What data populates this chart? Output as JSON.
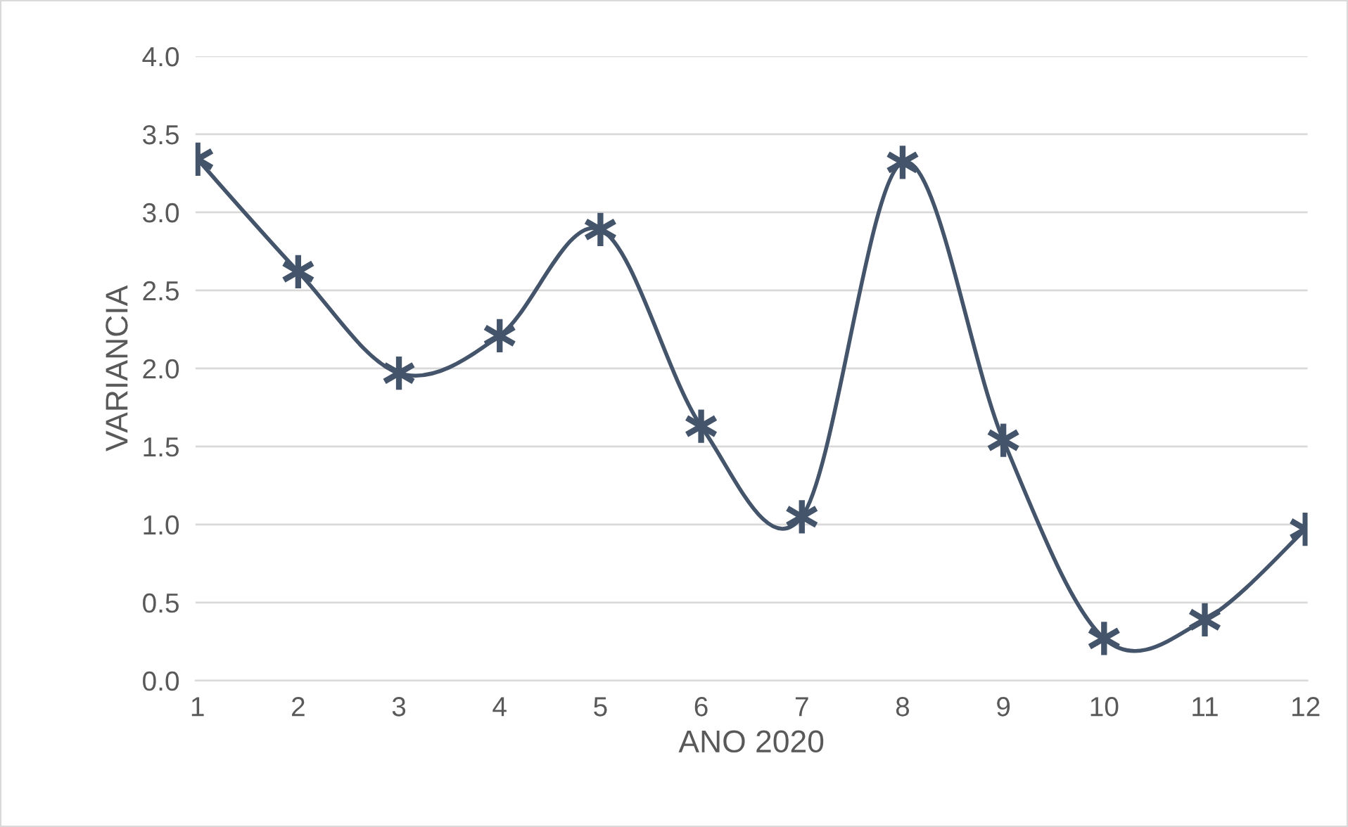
{
  "chart_data": {
    "type": "line",
    "xlabel": "ANO 2020",
    "ylabel": "VARIANCIA",
    "categories": [
      "1",
      "2",
      "3",
      "4",
      "5",
      "6",
      "7",
      "8",
      "9",
      "10",
      "11",
      "12"
    ],
    "series": [
      {
        "color": "#44546a",
        "values": [
          3.34,
          2.62,
          1.97,
          2.21,
          2.89,
          1.63,
          1.05,
          3.32,
          1.54,
          0.27,
          0.39,
          0.97
        ]
      }
    ],
    "ylim": [
      0,
      4
    ],
    "yticks": [
      {
        "value": 0,
        "label": "0.0"
      },
      {
        "value": 0.5,
        "label": "0.5"
      },
      {
        "value": 1,
        "label": "1.0"
      },
      {
        "value": 1.5,
        "label": "1.5"
      },
      {
        "value": 2,
        "label": "2.0"
      },
      {
        "value": 2.5,
        "label": "2.5"
      },
      {
        "value": 3,
        "label": "3.0"
      },
      {
        "value": 3.5,
        "label": "3.5"
      },
      {
        "value": 4,
        "label": "4.0"
      }
    ],
    "grid": "y",
    "marker": "cross",
    "line_style": "solid"
  }
}
